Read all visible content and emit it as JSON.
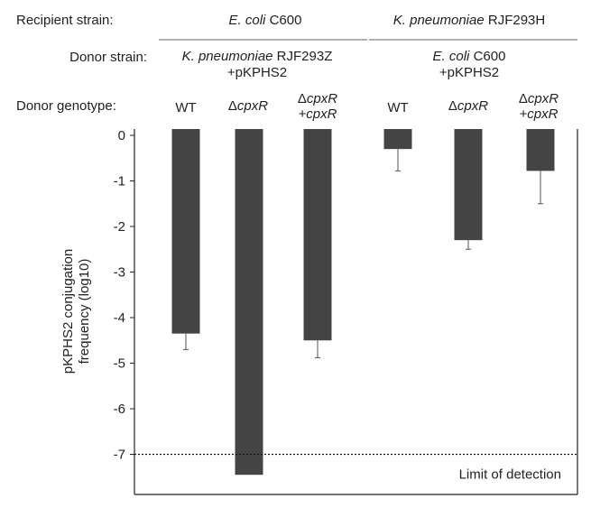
{
  "header": {
    "recipient_label": "Recipient strain:",
    "donor_label": "Donor strain:",
    "genotype_label": "Donor genotype:",
    "groups": [
      {
        "recipient_genus": "E. coli",
        "recipient_strain": " C600",
        "donor_genus": "K. pneumoniae",
        "donor_strain": " RJF293Z",
        "donor_plasmid": "+pKPHS2"
      },
      {
        "recipient_genus": "K. pneumoniae",
        "recipient_strain": " RJF293H",
        "donor_genus": "E. coli",
        "donor_strain": " C600",
        "donor_plasmid": "+pKPHS2"
      }
    ],
    "genotype_symbols": {
      "delta": "Δ",
      "gene": "cpxR",
      "complement": "+cpxR"
    }
  },
  "chart_data": {
    "type": "bar",
    "categories": [
      "WT",
      "ΔcpxR",
      "ΔcpxR +cpxR",
      "WT",
      "ΔcpxR",
      "ΔcpxR +cpxR"
    ],
    "series": [
      {
        "values": [
          -4.35,
          -7.45,
          -4.5,
          -0.3,
          -2.3,
          -0.78
        ],
        "errors": [
          0.35,
          0,
          0.38,
          0.48,
          0.2,
          0.72
        ]
      }
    ],
    "ylabel": "pKPHS2 conjugation frequency (log10)",
    "ylim": [
      -7.9,
      0
    ],
    "yticks": [
      0,
      -1,
      -2,
      -3,
      -4,
      -5,
      -6,
      -7
    ],
    "grid": false,
    "bar_color": "#444444",
    "reference_line": {
      "y": -7,
      "label": "Limit of detection",
      "style": "dotted"
    }
  }
}
